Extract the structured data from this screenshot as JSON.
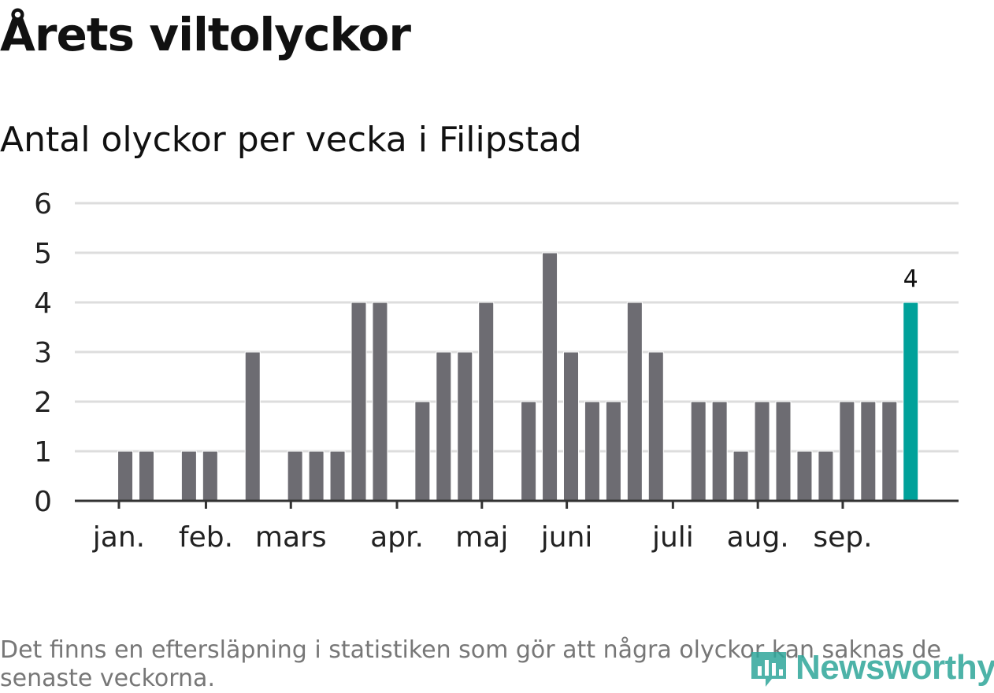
{
  "header": {
    "title": "Årets viltolyckor",
    "subtitle": "Antal olyckor per vecka i Filipstad"
  },
  "footer": {
    "note": "Det finns en eftersläpning i statistiken som gör att några olyckor kan saknas de senaste veckorna.",
    "logo_text": "Newsworthy"
  },
  "colors": {
    "bar": "#6d6c72",
    "highlight": "#00a19a",
    "grid": "#dddddd",
    "axis": "#333333",
    "text": "#222222"
  },
  "chart_data": {
    "type": "bar",
    "title": "Antal olyckor per vecka i Filipstad",
    "xlabel": "",
    "ylabel": "",
    "ylim": [
      0,
      6
    ],
    "yticks": [
      0,
      1,
      2,
      3,
      4,
      5,
      6
    ],
    "grid": true,
    "weeks": [
      1,
      2,
      3,
      4,
      5,
      6,
      7,
      8,
      9,
      10,
      11,
      12,
      13,
      14,
      15,
      16,
      17,
      18,
      19,
      20,
      21,
      22,
      23,
      24,
      25,
      26,
      27,
      28,
      29,
      30,
      31,
      32,
      33,
      34,
      35,
      36,
      37,
      38,
      39,
      40,
      41
    ],
    "values": [
      0,
      1,
      1,
      0,
      1,
      1,
      0,
      3,
      0,
      1,
      1,
      1,
      4,
      4,
      0,
      2,
      3,
      3,
      4,
      0,
      2,
      5,
      3,
      2,
      2,
      4,
      3,
      0,
      2,
      2,
      1,
      2,
      2,
      1,
      1,
      2,
      2,
      2,
      4,
      0,
      0
    ],
    "highlight_index": 38,
    "highlight_label": "4",
    "month_ticks": [
      {
        "label": "jan.",
        "week": 1.7
      },
      {
        "label": "feb.",
        "week": 5.8
      },
      {
        "label": "mars",
        "week": 9.8
      },
      {
        "label": "apr.",
        "week": 14.8
      },
      {
        "label": "maj",
        "week": 18.8
      },
      {
        "label": "juni",
        "week": 22.8
      },
      {
        "label": "juli",
        "week": 27.8
      },
      {
        "label": "aug.",
        "week": 31.8
      },
      {
        "label": "sep.",
        "week": 35.8
      }
    ]
  }
}
